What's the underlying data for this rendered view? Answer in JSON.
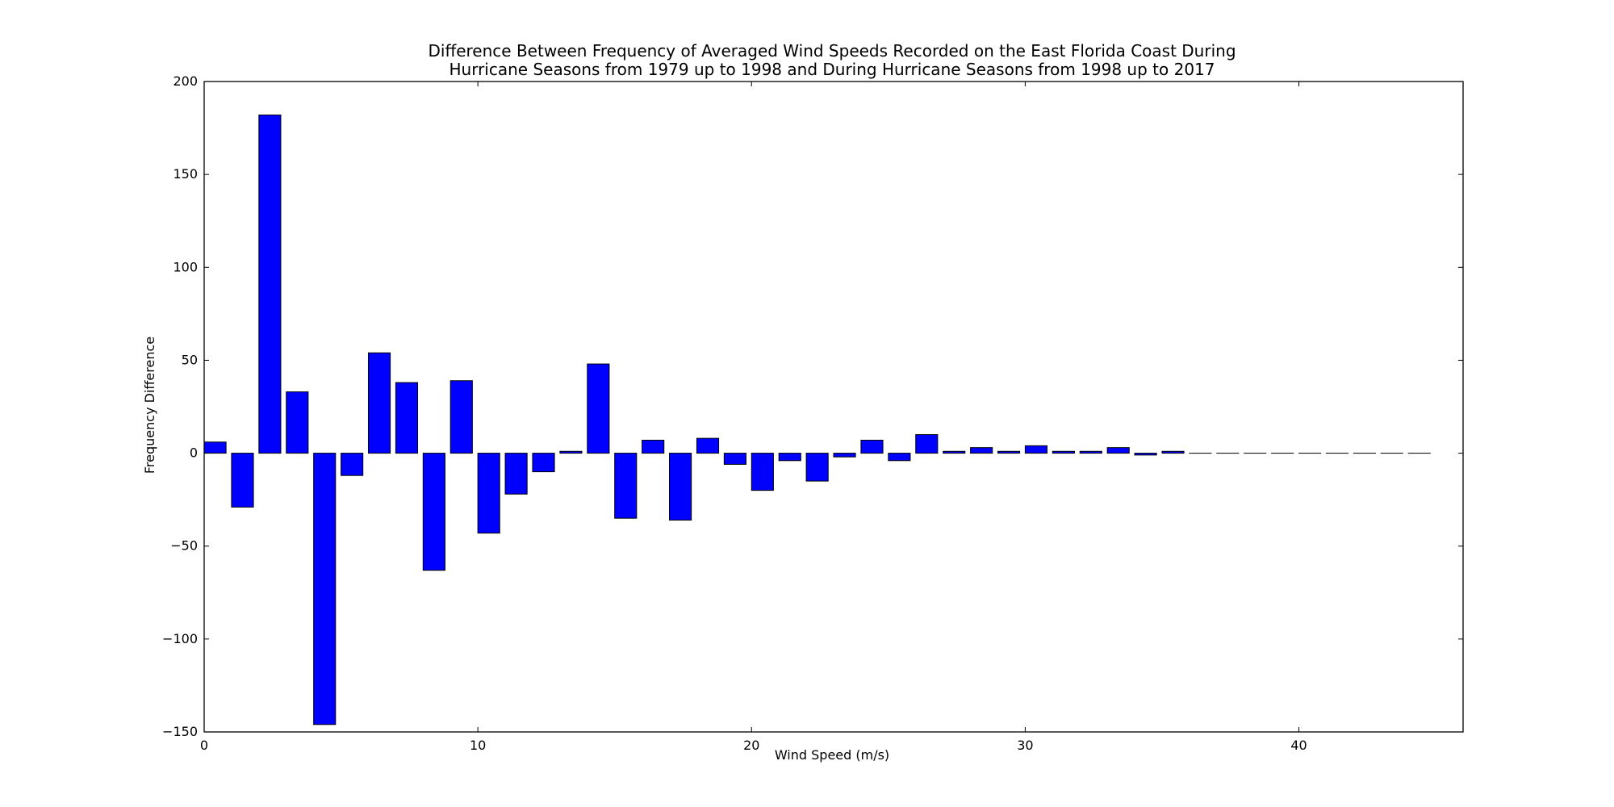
{
  "chart_data": {
    "type": "bar",
    "title_lines": [
      "Difference Between Frequency of Averaged Wind Speeds Recorded on the East Florida Coast During",
      "Hurricane Seasons from 1979 up to 1998 and During Hurricane Seasons from 1998 up to 2017"
    ],
    "xlabel": "Wind Speed (m/s)",
    "ylabel": "Frequency Difference",
    "xlim": [
      0,
      46
    ],
    "ylim": [
      -150,
      200
    ],
    "xticks": [
      0,
      10,
      20,
      30,
      40
    ],
    "yticks": [
      -150,
      -100,
      -50,
      0,
      50,
      100,
      150,
      200
    ],
    "xtick_labels": [
      "0",
      "10",
      "20",
      "30",
      "40"
    ],
    "ytick_labels": [
      "−150",
      "−100",
      "−50",
      "0",
      "50",
      "100",
      "150",
      "200"
    ],
    "bar_width": 0.8,
    "bar_color": "#0000ff",
    "edge_color": "#000000",
    "grid": false,
    "x": [
      0,
      1,
      2,
      3,
      4,
      5,
      6,
      7,
      8,
      9,
      10,
      11,
      12,
      13,
      14,
      15,
      16,
      17,
      18,
      19,
      20,
      21,
      22,
      23,
      24,
      25,
      26,
      27,
      28,
      29,
      30,
      31,
      32,
      33,
      34,
      35,
      36,
      37,
      38,
      39,
      40,
      41,
      42,
      43,
      44
    ],
    "values": [
      6,
      -29,
      182,
      33,
      -146,
      -12,
      54,
      38,
      -63,
      39,
      -43,
      -22,
      -10,
      1,
      48,
      -35,
      7,
      -36,
      8,
      -6,
      -20,
      -4,
      -15,
      -2,
      7,
      -4,
      10,
      1,
      3,
      1,
      4,
      1,
      1,
      3,
      -1,
      1,
      0,
      0,
      0,
      0,
      0,
      0,
      0,
      0,
      0
    ]
  }
}
